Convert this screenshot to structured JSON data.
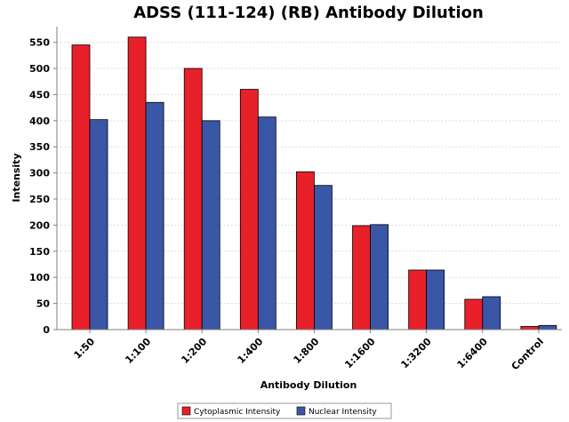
{
  "chart_data": {
    "type": "bar",
    "title": "ADSS (111-124) (RB) Antibody Dilution",
    "xlabel": "Antibody Dilution",
    "ylabel": "Intensity",
    "categories": [
      "1:50",
      "1:100",
      "1:200",
      "1:400",
      "1:800",
      "1:1600",
      "1:3200",
      "1:6400",
      "Control"
    ],
    "series": [
      {
        "name": "Cytoplasmic Intensity",
        "color": "#e8202a",
        "values": [
          545,
          560,
          500,
          460,
          302,
          199,
          114,
          58,
          6
        ]
      },
      {
        "name": "Nuclear Intensity",
        "color": "#3a56a6",
        "values": [
          402,
          435,
          400,
          407,
          276,
          201,
          114,
          63,
          8
        ]
      }
    ],
    "ylim": [
      0,
      580
    ],
    "yticks": [
      0,
      50,
      100,
      150,
      200,
      250,
      300,
      350,
      400,
      450,
      500,
      550
    ],
    "grid": true,
    "legend_position": "bottom"
  }
}
